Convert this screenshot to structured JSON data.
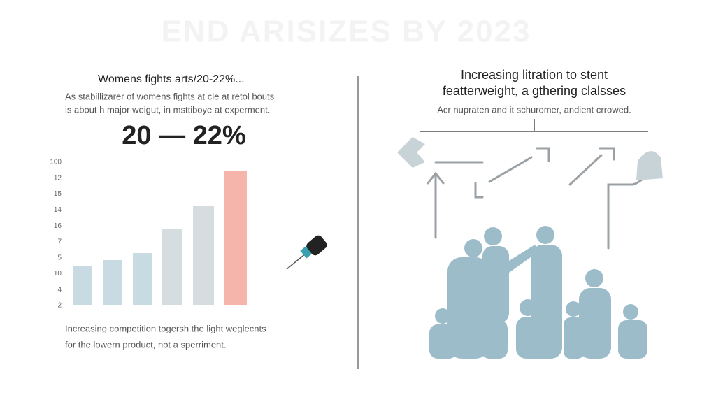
{
  "banner": "END ARISIZES BY 2023",
  "left": {
    "heading": "Womens fights arts/20-22%...",
    "body": [
      "As stabillizarer of womens fights at cle at retol bouts",
      "is about h major weigut, in msttiboye  at experment."
    ],
    "big_figure": "20 — 22%",
    "axis_labels": [
      "100",
      "12",
      "15",
      "14",
      "16",
      "7",
      "5",
      "10",
      "4",
      "2"
    ],
    "footer": [
      "Increasing competition togersh the light weglecnts",
      "for the lowern product, not a sperriment."
    ]
  },
  "right": {
    "heading": [
      "Increasing litration to stent",
      "featterweight, a gthering clalsses"
    ],
    "subtitle": "Acr nupraten and it schuromer, andient crrowed."
  }
}
